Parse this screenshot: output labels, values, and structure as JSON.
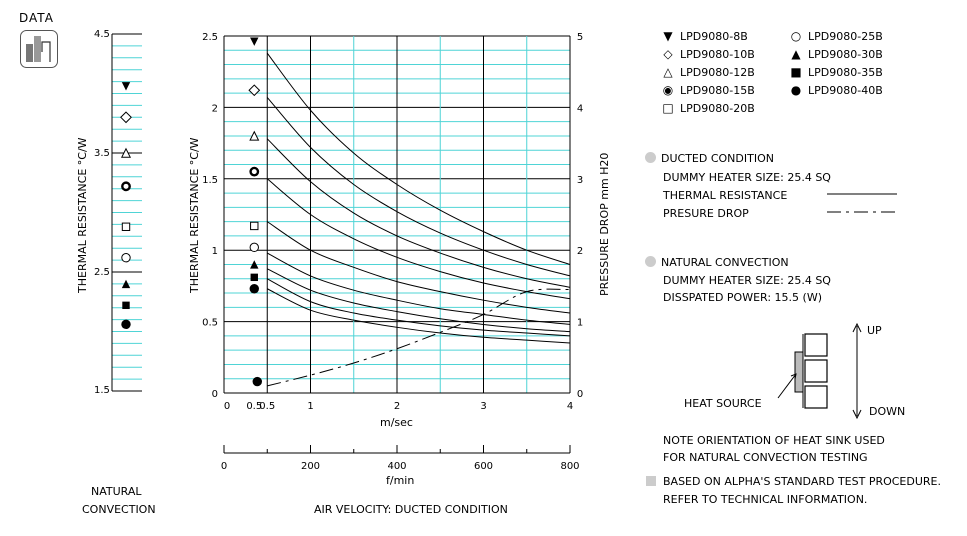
{
  "badge": {
    "label": "DATA"
  },
  "natural_chart": {
    "ticks": [
      "4.5",
      "3.5",
      "2.5",
      "1.5"
    ],
    "ylabel": "THERMAL  RESISTANCE  °C/W",
    "caption_line1": "NATURAL",
    "caption_line2": "CONVECTION"
  },
  "main_chart": {
    "ylabel_left": "THERMAL  RESISTANCE  °C/W",
    "ylabel_right": "PRESSURE  DROP  mm H20",
    "x1_unit": "m/sec",
    "x2_unit": "f/min",
    "caption": "AIR VELOCITY:  DUCTED CONDITION"
  },
  "chart_data": {
    "type": "line",
    "xlabel": "m/sec",
    "ylabel": "THERMAL  RESISTANCE  °C/W",
    "xlim": [
      0,
      4
    ],
    "ylim": [
      0,
      2.5
    ],
    "y2lim": [
      0,
      5
    ],
    "x_ticks": [
      "0",
      "0.5",
      "1",
      "2",
      "3",
      "4"
    ],
    "y_ticks": [
      "0",
      "0.5",
      "1",
      "1.5",
      "2",
      "2.5"
    ],
    "y2_ticks": [
      "0",
      "1",
      "2",
      "3",
      "4",
      "5"
    ],
    "x2_ticks": [
      "0",
      "200",
      "400",
      "600",
      "800"
    ],
    "x2lim": [
      0,
      800
    ],
    "grid": true,
    "x": [
      0.5,
      1,
      1.5,
      2,
      2.5,
      3,
      3.5,
      4
    ],
    "series": [
      {
        "name": "LPD9080-8B",
        "values": [
          2.38,
          1.98,
          1.68,
          1.46,
          1.28,
          1.13,
          1.0,
          0.9
        ]
      },
      {
        "name": "LPD9080-10B",
        "values": [
          2.07,
          1.72,
          1.46,
          1.27,
          1.12,
          1.0,
          0.9,
          0.82
        ]
      },
      {
        "name": "LPD9080-12B",
        "values": [
          1.78,
          1.48,
          1.26,
          1.1,
          0.98,
          0.88,
          0.8,
          0.74
        ]
      },
      {
        "name": "LPD9080-15B",
        "values": [
          1.5,
          1.25,
          1.08,
          0.95,
          0.85,
          0.77,
          0.71,
          0.66
        ]
      },
      {
        "name": "LPD9080-20B",
        "values": [
          1.2,
          1.0,
          0.88,
          0.78,
          0.71,
          0.65,
          0.6,
          0.56
        ]
      },
      {
        "name": "LPD9080-25B",
        "values": [
          0.98,
          0.82,
          0.72,
          0.65,
          0.59,
          0.55,
          0.51,
          0.48
        ]
      },
      {
        "name": "LPD9080-30B",
        "values": [
          0.87,
          0.72,
          0.63,
          0.57,
          0.52,
          0.48,
          0.45,
          0.43
        ]
      },
      {
        "name": "LPD9080-35B",
        "values": [
          0.8,
          0.64,
          0.56,
          0.51,
          0.47,
          0.44,
          0.42,
          0.4
        ]
      },
      {
        "name": "LPD9080-40B",
        "values": [
          0.73,
          0.58,
          0.51,
          0.46,
          0.42,
          0.39,
          0.37,
          0.35
        ]
      }
    ],
    "pressure_drop": {
      "name": "PRESURE DROP",
      "x": [
        0.5,
        1,
        1.5,
        2,
        2.5,
        3,
        3.5,
        4
      ],
      "values": [
        0.1,
        0.25,
        0.42,
        0.62,
        0.85,
        1.1,
        1.42,
        1.45
      ]
    },
    "ducted_markers_y": [
      2.46,
      2.12,
      1.8,
      1.55,
      1.17,
      1.02,
      0.9,
      0.81,
      0.73,
      0.08
    ],
    "natural_markers": {
      "ylim": [
        1.5,
        4.5
      ],
      "values": [
        4.06,
        3.8,
        3.5,
        3.22,
        2.88,
        2.62,
        2.4,
        2.22,
        2.06
      ]
    }
  },
  "legend": {
    "col1": [
      {
        "symbol": "▼",
        "label": "LPD9080-8B"
      },
      {
        "symbol": "◇",
        "label": "LPD9080-10B"
      },
      {
        "symbol": "△",
        "label": "LPD9080-12B"
      },
      {
        "symbol": "◉",
        "label": "LPD9080-15B"
      },
      {
        "symbol": "□",
        "label": "LPD9080-20B"
      }
    ],
    "col2": [
      {
        "symbol": "○",
        "label": "LPD9080-25B"
      },
      {
        "symbol": "▲",
        "label": "LPD9080-30B"
      },
      {
        "symbol": "■",
        "label": "LPD9080-35B"
      },
      {
        "symbol": "●",
        "label": "LPD9080-40B"
      }
    ]
  },
  "ducted": {
    "title": "DUCTED CONDITION",
    "line1": "DUMMY HEATER SIZE:  25.4 SQ",
    "line2": "THERMAL RESISTANCE",
    "line3": "PRESURE DROP"
  },
  "natural": {
    "title": "NATURAL CONVECTION",
    "line1": "DUMMY HEATER SIZE:  25.4 SQ",
    "line2": "DISSPATED POWER:  15.5 (W)"
  },
  "diagram": {
    "up": "UP",
    "down": "DOWN",
    "heat_source": "HEAT SOURCE"
  },
  "notes": {
    "line1": "NOTE ORIENTATION OF HEAT SINK USED",
    "line2": "FOR NATURAL CONVECTION TESTING",
    "line3": "BASED ON ALPHA'S STANDARD TEST PROCEDURE.",
    "line4": "REFER TO TECHNICAL INFORMATION."
  },
  "colors": {
    "grid_cyan": "#4fd4d6",
    "bullet_gray": "#c8c8c8"
  }
}
